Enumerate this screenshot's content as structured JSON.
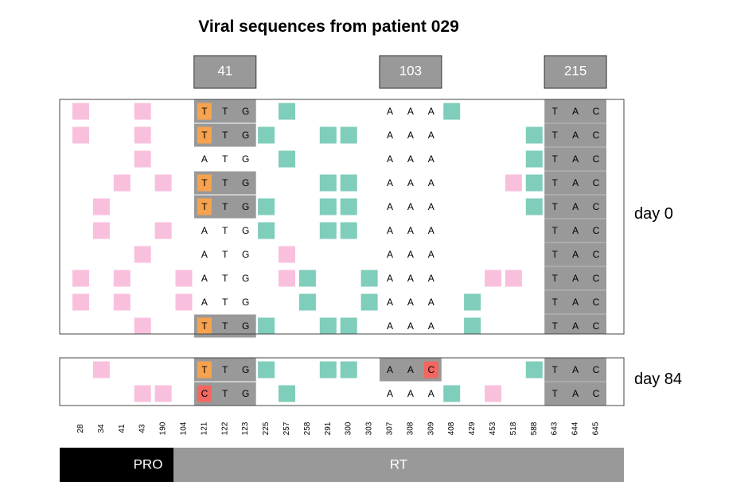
{
  "title": "Viral sequences from patient 029",
  "colors": {
    "pink": "#F9C0DE",
    "teal": "#7FCDBB",
    "orange": "#F7A24E",
    "red": "#F2675F",
    "gray": "#999999",
    "black": "#000000"
  },
  "positions": [
    "28",
    "34",
    "41",
    "43",
    "190",
    "104",
    "121",
    "122",
    "123",
    "225",
    "257",
    "258",
    "291",
    "300",
    "303",
    "307",
    "308",
    "309",
    "408",
    "429",
    "453",
    "518",
    "588",
    "643",
    "644",
    "645"
  ],
  "codon_headers": [
    {
      "label": "41",
      "center_col": 7
    },
    {
      "label": "103",
      "center_col": 16
    },
    {
      "label": "215",
      "center_col": 24
    }
  ],
  "panels": [
    {
      "label": "day 0",
      "rows": [
        {
          "pink": [
            0,
            3
          ],
          "teal": [
            10,
            18
          ],
          "gray": [
            [
              6,
              8
            ]
          ],
          "letters": {
            "6": "T",
            "7": "T",
            "8": "G",
            "15": "A",
            "16": "A",
            "17": "A"
          },
          "orange": [
            6
          ],
          "red": []
        },
        {
          "pink": [
            0,
            3
          ],
          "teal": [
            9,
            12,
            13,
            22
          ],
          "gray": [
            [
              6,
              8
            ]
          ],
          "letters": {
            "6": "T",
            "7": "T",
            "8": "G",
            "15": "A",
            "16": "A",
            "17": "A"
          },
          "orange": [
            6
          ],
          "red": []
        },
        {
          "pink": [
            3
          ],
          "teal": [
            10,
            22
          ],
          "gray": [],
          "letters": {
            "6": "A",
            "7": "T",
            "8": "G",
            "15": "A",
            "16": "A",
            "17": "A"
          },
          "orange": [],
          "red": []
        },
        {
          "pink": [
            2,
            4,
            21
          ],
          "teal": [
            12,
            13,
            22
          ],
          "gray": [
            [
              6,
              8
            ]
          ],
          "letters": {
            "6": "T",
            "7": "T",
            "8": "G",
            "15": "A",
            "16": "A",
            "17": "A"
          },
          "orange": [
            6
          ],
          "red": []
        },
        {
          "pink": [
            1
          ],
          "teal": [
            9,
            12,
            13,
            22
          ],
          "gray": [
            [
              6,
              8
            ]
          ],
          "letters": {
            "6": "T",
            "7": "T",
            "8": "G",
            "15": "A",
            "16": "A",
            "17": "A"
          },
          "orange": [
            6
          ],
          "red": []
        },
        {
          "pink": [
            1,
            4
          ],
          "teal": [
            9,
            12,
            13
          ],
          "gray": [],
          "letters": {
            "6": "A",
            "7": "T",
            "8": "G",
            "15": "A",
            "16": "A",
            "17": "A"
          },
          "orange": [],
          "red": []
        },
        {
          "pink": [
            3,
            10
          ],
          "teal": [],
          "gray": [],
          "letters": {
            "6": "A",
            "7": "T",
            "8": "G",
            "15": "A",
            "16": "A",
            "17": "A"
          },
          "orange": [],
          "red": []
        },
        {
          "pink": [
            0,
            2,
            5,
            10,
            20,
            21
          ],
          "teal": [
            11,
            14
          ],
          "gray": [],
          "letters": {
            "6": "A",
            "7": "T",
            "8": "G",
            "15": "A",
            "16": "A",
            "17": "A"
          },
          "orange": [],
          "red": []
        },
        {
          "pink": [
            0,
            2,
            5
          ],
          "teal": [
            11,
            14,
            19
          ],
          "gray": [],
          "letters": {
            "6": "A",
            "7": "T",
            "8": "G",
            "15": "A",
            "16": "A",
            "17": "A"
          },
          "orange": [],
          "red": []
        },
        {
          "pink": [
            3
          ],
          "teal": [
            9,
            12,
            13,
            19
          ],
          "gray": [
            [
              6,
              8
            ]
          ],
          "letters": {
            "6": "T",
            "7": "T",
            "8": "G",
            "15": "A",
            "16": "A",
            "17": "A"
          },
          "orange": [
            6
          ],
          "red": []
        }
      ]
    },
    {
      "label": "day 84",
      "rows": [
        {
          "pink": [
            1
          ],
          "teal": [
            9,
            12,
            13,
            22
          ],
          "gray": [
            [
              6,
              8
            ],
            [
              15,
              17
            ]
          ],
          "letters": {
            "6": "T",
            "7": "T",
            "8": "G",
            "15": "A",
            "16": "A",
            "17": "C"
          },
          "orange": [
            6
          ],
          "red": [
            17
          ]
        },
        {
          "pink": [
            3,
            4,
            20
          ],
          "teal": [
            10,
            18
          ],
          "gray": [
            [
              6,
              8
            ]
          ],
          "letters": {
            "6": "C",
            "7": "T",
            "8": "G",
            "15": "A",
            "16": "A",
            "17": "A"
          },
          "orange": [],
          "red": [
            6
          ]
        }
      ]
    }
  ],
  "common_cols": [
    23,
    24,
    25
  ],
  "common_letters": [
    "T",
    "A",
    "C"
  ],
  "regions": [
    {
      "label": "PRO",
      "start_col": 0,
      "end_col": 4,
      "color": "#000000"
    },
    {
      "label": "RT",
      "start_col": 5,
      "end_col": 25,
      "color": "#999999"
    }
  ]
}
